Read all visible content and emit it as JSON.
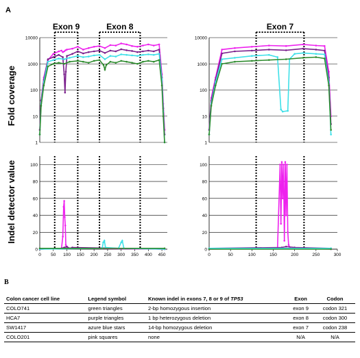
{
  "figure": {
    "panel_a_label": "A",
    "panel_b_label": "B",
    "table": {
      "headers": [
        "Colon cancer cell line",
        "Legend symbol",
        "Known indel in exons 7, 8 or 9 of ",
        "TP53",
        "Exon",
        "Codon"
      ],
      "rows": [
        [
          "COLO741",
          "green triangles",
          "2-bp homozygous insertion",
          "exon 9",
          "codon 321"
        ],
        [
          "HCA7",
          "purple triangles",
          "1 bp  heterozygous deletion",
          "exon 8",
          "codon 300"
        ],
        [
          "SW1417",
          "azure blue stars",
          "14-bp homozygous deletion",
          "exon 7",
          "codon 238"
        ],
        [
          "COLO201",
          "pink squares",
          "none",
          "N/A",
          "N/A"
        ]
      ]
    }
  },
  "colors": {
    "green": "#2e8b2e",
    "purple": "#7a1f8c",
    "azure": "#3fe0e8",
    "pink": "#ee22ee",
    "grid": "#000000"
  },
  "chart_data": [
    {
      "type": "line",
      "panel": "top-left",
      "ylabel": "Fold coverage",
      "yscale": "log",
      "ylim": [
        1,
        10000
      ],
      "yticks": [
        1,
        10,
        100,
        1000,
        10000
      ],
      "xlim": [
        0,
        470
      ],
      "exon_labels": [
        "Exon 9",
        "Exon 8"
      ],
      "exon_bounds": [
        [
          55,
          140
        ],
        [
          220,
          370
        ]
      ],
      "series": [
        {
          "x": [
            0,
            5,
            15,
            30,
            50,
            70,
            80,
            85,
            90,
            95,
            100,
            120,
            140,
            160,
            180,
            200,
            220,
            240,
            260,
            280,
            300,
            320,
            340,
            360,
            380,
            400,
            420,
            440,
            450,
            455,
            460
          ],
          "values": [
            3,
            40,
            300,
            1400,
            2400,
            3000,
            3200,
            2800,
            3000,
            3300,
            3500,
            3800,
            4500,
            3500,
            4000,
            4500,
            4800,
            4000,
            5200,
            5000,
            6000,
            5500,
            4800,
            4500,
            5000,
            5500,
            5000,
            5500,
            400,
            30,
            3
          ]
        },
        {
          "x": [
            0,
            5,
            15,
            30,
            50,
            70,
            85,
            90,
            93,
            96,
            100,
            120,
            140,
            160,
            180,
            200,
            220,
            240,
            260,
            280,
            300,
            320,
            340,
            360,
            380,
            400,
            420,
            440,
            450,
            455,
            460
          ],
          "values": [
            3,
            40,
            250,
            1500,
            1800,
            2200,
            1800,
            400,
            80,
            500,
            2000,
            2400,
            3000,
            2500,
            2800,
            3000,
            3200,
            2600,
            3200,
            3000,
            3600,
            3300,
            3100,
            2800,
            3000,
            3200,
            3000,
            3500,
            300,
            20,
            2
          ]
        },
        {
          "x": [
            0,
            5,
            15,
            30,
            50,
            70,
            90,
            110,
            140,
            160,
            180,
            200,
            220,
            240,
            260,
            280,
            300,
            320,
            340,
            360,
            380,
            400,
            420,
            440,
            450,
            455,
            460
          ],
          "values": [
            2,
            30,
            200,
            1200,
            1400,
            1600,
            1500,
            1700,
            2000,
            1800,
            1900,
            2100,
            2200,
            1500,
            2000,
            1900,
            2300,
            2200,
            2100,
            2000,
            2200,
            2300,
            2200,
            2400,
            250,
            15,
            1
          ]
        },
        {
          "x": [
            0,
            5,
            15,
            30,
            50,
            70,
            90,
            110,
            140,
            160,
            180,
            200,
            220,
            235,
            240,
            245,
            260,
            280,
            300,
            320,
            340,
            360,
            380,
            400,
            420,
            440,
            450,
            455,
            460
          ],
          "values": [
            2,
            25,
            150,
            800,
            1000,
            1100,
            1000,
            1200,
            1300,
            1200,
            1100,
            1300,
            1400,
            900,
            600,
            900,
            1200,
            1100,
            1300,
            1200,
            1100,
            1000,
            1200,
            1300,
            1200,
            1400,
            150,
            10,
            1
          ]
        }
      ]
    },
    {
      "type": "line",
      "panel": "top-right",
      "yscale": "log",
      "ylim": [
        1,
        10000
      ],
      "yticks": [
        1,
        10,
        100,
        1000,
        10000
      ],
      "xlim": [
        0,
        300
      ],
      "exon_labels": [
        "Exon 7"
      ],
      "exon_bounds": [
        [
          110,
          222
        ]
      ],
      "series": [
        {
          "x": [
            0,
            5,
            15,
            30,
            60,
            100,
            140,
            180,
            220,
            250,
            270,
            280,
            285
          ],
          "values": [
            3,
            50,
            300,
            3500,
            4000,
            4500,
            5000,
            4800,
            5500,
            5000,
            4800,
            500,
            10
          ]
        },
        {
          "x": [
            0,
            5,
            15,
            30,
            60,
            100,
            140,
            180,
            220,
            250,
            270,
            280,
            285
          ],
          "values": [
            3,
            40,
            250,
            2500,
            3000,
            3200,
            3500,
            3300,
            3800,
            3500,
            3200,
            300,
            5
          ]
        },
        {
          "x": [
            0,
            5,
            15,
            30,
            60,
            100,
            140,
            160,
            168,
            172,
            184,
            188,
            200,
            220,
            250,
            270,
            280,
            285
          ],
          "values": [
            2,
            30,
            200,
            1500,
            1700,
            2000,
            2200,
            1800,
            18,
            15,
            16,
            1500,
            2400,
            2600,
            2400,
            2300,
            200,
            2
          ]
        },
        {
          "x": [
            0,
            5,
            15,
            30,
            60,
            100,
            140,
            180,
            220,
            250,
            270,
            280,
            285
          ],
          "values": [
            2,
            25,
            150,
            1000,
            1200,
            1300,
            1400,
            1500,
            1700,
            1800,
            1600,
            150,
            3
          ]
        }
      ]
    },
    {
      "type": "line",
      "panel": "bottom-left",
      "ylabel": "Indel detector value",
      "ylim": [
        0,
        110
      ],
      "yticks": [
        0,
        20,
        40,
        60,
        80,
        100
      ],
      "xlim": [
        0,
        470
      ],
      "xticks": [
        0,
        50,
        100,
        150,
        200,
        250,
        300,
        350,
        400,
        450
      ],
      "exon_bounds": [
        [
          55,
          140
        ],
        [
          220,
          370
        ]
      ],
      "series": [
        {
          "x": [
            0,
            80,
            85,
            88,
            90,
            92,
            94,
            96,
            100,
            120,
            460
          ],
          "values": [
            0,
            1,
            15,
            50,
            57,
            38,
            28,
            5,
            1,
            1,
            0
          ]
        },
        {
          "x": [
            0,
            80,
            90,
            100,
            110,
            120,
            460
          ],
          "values": [
            0,
            1,
            2,
            3,
            1,
            2,
            0
          ]
        },
        {
          "x": [
            0,
            230,
            234,
            238,
            242,
            290,
            300,
            304,
            310,
            460
          ],
          "values": [
            0,
            1,
            8,
            10,
            2,
            1,
            8,
            10,
            1,
            0
          ]
        },
        {
          "x": [
            0,
            460
          ],
          "values": [
            1,
            1
          ]
        }
      ]
    },
    {
      "type": "line",
      "panel": "bottom-right",
      "ylim": [
        0,
        110
      ],
      "yticks": [
        0,
        20,
        40,
        60,
        80,
        100
      ],
      "xlim": [
        0,
        300
      ],
      "xticks": [
        0,
        50,
        100,
        150,
        200,
        250,
        300
      ],
      "exon_bounds": [
        [
          110,
          222
        ]
      ],
      "series": [
        {
          "x": [
            0,
            160,
            166,
            168,
            170,
            172,
            174,
            176,
            178,
            180,
            182,
            184,
            186,
            190,
            285
          ],
          "values": [
            0,
            1,
            100,
            30,
            103,
            60,
            100,
            10,
            103,
            40,
            100,
            20,
            5,
            1,
            0
          ]
        },
        {
          "x": [
            0,
            170,
            180,
            200,
            285
          ],
          "values": [
            1,
            2,
            3,
            2,
            1
          ]
        },
        {
          "x": [
            0,
            285
          ],
          "values": [
            1,
            1
          ]
        },
        {
          "x": [
            0,
            285
          ],
          "values": [
            0,
            0
          ]
        }
      ]
    }
  ]
}
